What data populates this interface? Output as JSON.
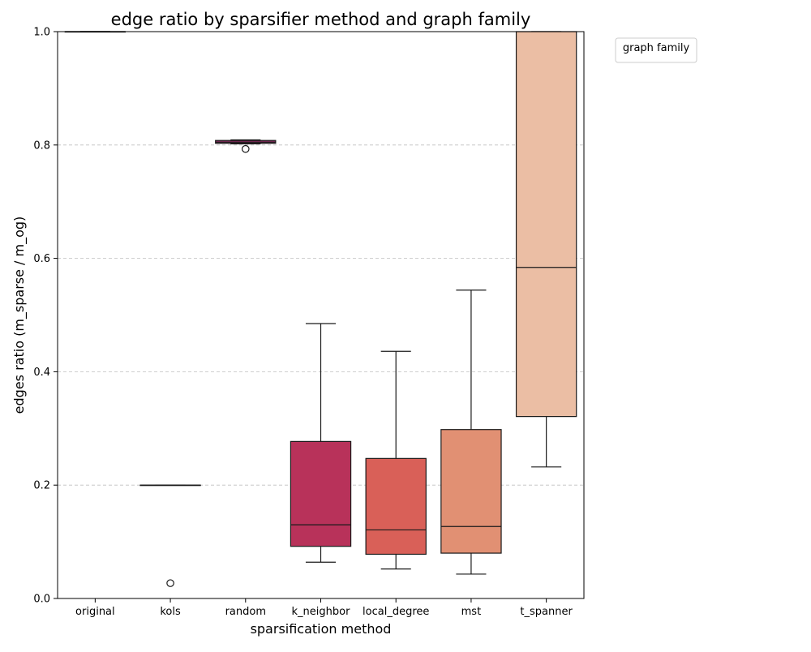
{
  "chart_data": {
    "type": "box",
    "title": "edge ratio by sparsifier method and graph family",
    "xlabel": "sparsification method",
    "ylabel": "edges ratio (m_sparse / m_og)",
    "ylim": [
      0.0,
      1.0
    ],
    "y_ticks": [
      "0.0",
      "0.2",
      "0.4",
      "0.6",
      "0.8",
      "1.0"
    ],
    "grid": "y-dashed",
    "legend": {
      "title": "graph family",
      "placement": "upper-right-outside",
      "entries": []
    },
    "categories": [
      "original",
      "kols",
      "random",
      "k_neighbor",
      "local_degree",
      "mst",
      "t_spanner"
    ],
    "boxes": [
      {
        "category": "original",
        "whisker_low": 1.0,
        "q1": 1.0,
        "median": 1.0,
        "q3": 1.0,
        "whisker_high": 1.0,
        "outliers": [],
        "color": "#3a1a4a"
      },
      {
        "category": "kols",
        "whisker_low": 0.2,
        "q1": 0.2,
        "median": 0.2,
        "q3": 0.2,
        "whisker_high": 0.2,
        "outliers": [
          0.027
        ],
        "color": "#5a1f5c"
      },
      {
        "category": "random",
        "whisker_low": 0.802,
        "q1": 0.803,
        "median": 0.805,
        "q3": 0.808,
        "whisker_high": 0.809,
        "outliers": [
          0.793
        ],
        "color": "#8a2a60"
      },
      {
        "category": "k_neighbor",
        "whisker_low": 0.064,
        "q1": 0.092,
        "median": 0.13,
        "q3": 0.277,
        "whisker_high": 0.485,
        "outliers": [],
        "color": "#b8325a"
      },
      {
        "category": "local_degree",
        "whisker_low": 0.052,
        "q1": 0.078,
        "median": 0.121,
        "q3": 0.247,
        "whisker_high": 0.436,
        "outliers": [],
        "color": "#d96058"
      },
      {
        "category": "mst",
        "whisker_low": 0.043,
        "q1": 0.08,
        "median": 0.127,
        "q3": 0.298,
        "whisker_high": 0.544,
        "outliers": [],
        "color": "#e19073"
      },
      {
        "category": "t_spanner",
        "whisker_low": 0.232,
        "q1": 0.321,
        "median": 0.584,
        "q3": 1.0,
        "whisker_high": 1.0,
        "outliers": [],
        "color": "#ebbea4"
      }
    ]
  }
}
